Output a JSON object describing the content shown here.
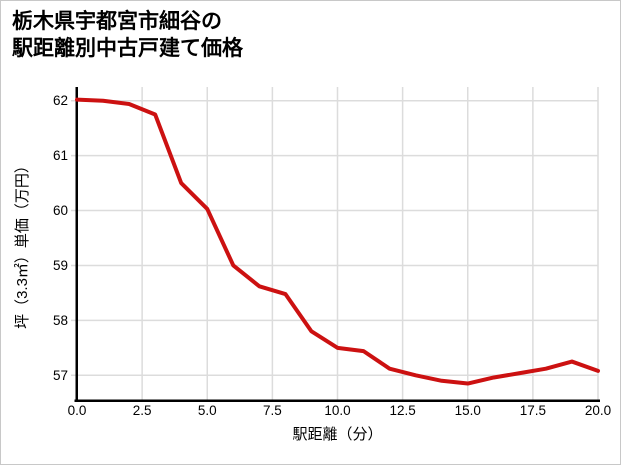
{
  "title": {
    "line1": "栃木県宇都宮市細谷の",
    "line2": "駅距離別中古戸建て価格"
  },
  "chart_data": {
    "type": "line",
    "title": "栃木県宇都宮市細谷の駅距離別中古戸建て価格",
    "xlabel": "駅距離（分）",
    "ylabel": "坪（3.3㎡）単価（万円）",
    "x": [
      0,
      1,
      2,
      3,
      4,
      5,
      6,
      7,
      8,
      9,
      10,
      11,
      12,
      13,
      14,
      15,
      16,
      17,
      18,
      19,
      20
    ],
    "series": [
      {
        "name": "坪単価（万円）",
        "color": "#cc1111",
        "values": [
          62.02,
          62.0,
          61.94,
          61.75,
          60.5,
          60.03,
          59.0,
          58.62,
          58.48,
          57.8,
          57.5,
          57.44,
          57.12,
          57.0,
          56.9,
          56.85,
          56.96,
          57.04,
          57.12,
          57.25,
          57.08
        ]
      }
    ],
    "xlim": [
      0,
      20
    ],
    "ylim": [
      56.55,
      62.25
    ],
    "xticks": [
      0,
      2.5,
      5,
      7.5,
      10,
      12.5,
      15,
      17.5,
      20
    ],
    "xtick_labels": [
      "0.0",
      "2.5",
      "5.0",
      "7.5",
      "10.0",
      "12.5",
      "15.0",
      "17.5",
      "20.0"
    ],
    "yticks": [
      57,
      58,
      59,
      60,
      61,
      62
    ],
    "ytick_labels": [
      "57",
      "58",
      "59",
      "60",
      "61",
      "62"
    ],
    "grid": true,
    "legend": false,
    "grid_color": "#dcdcdc",
    "axis_color": "#000000",
    "background_color": "#ffffff"
  }
}
